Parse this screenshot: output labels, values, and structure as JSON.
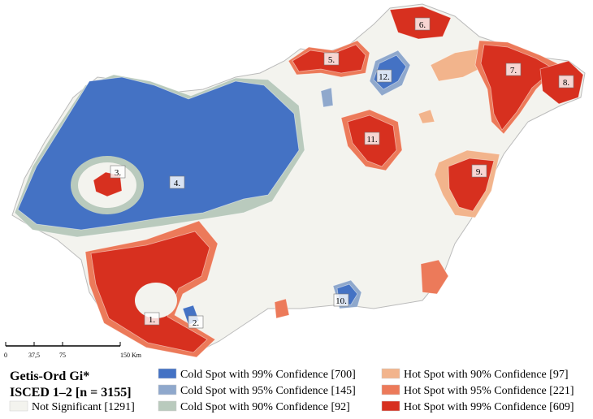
{
  "map": {
    "clusters": [
      "1.",
      "2.",
      "3.",
      "4.",
      "5.",
      "6.",
      "7.",
      "8.",
      "9.",
      "10.",
      "11.",
      "12."
    ],
    "scale": {
      "ticks": [
        "0",
        "37,5",
        "75",
        "150 Km"
      ]
    }
  },
  "legend": {
    "title": "Getis-Ord Gi*",
    "subtitle": "ISCED 1–2  [n = 3155]",
    "items": [
      {
        "label": "Cold Spot with 99% Confidence [700]",
        "color": "#4472c4"
      },
      {
        "label": "Cold Spot with 95% Confidence [145]",
        "color": "#8fa8cc"
      },
      {
        "label": "Cold Spot with 90% Confidence [92]",
        "color": "#b9cabd"
      },
      {
        "label": "Hot Spot with 90% Confidence [97]",
        "color": "#f2b48c"
      },
      {
        "label": "Hot Spot with 95% Confidence [221]",
        "color": "#ec7a5a"
      },
      {
        "label": "Hot Spot with 99% Confidence [609]",
        "color": "#d7301f"
      },
      {
        "label": "Not Significant [1291]",
        "color": "#f3f3ee"
      }
    ]
  }
}
